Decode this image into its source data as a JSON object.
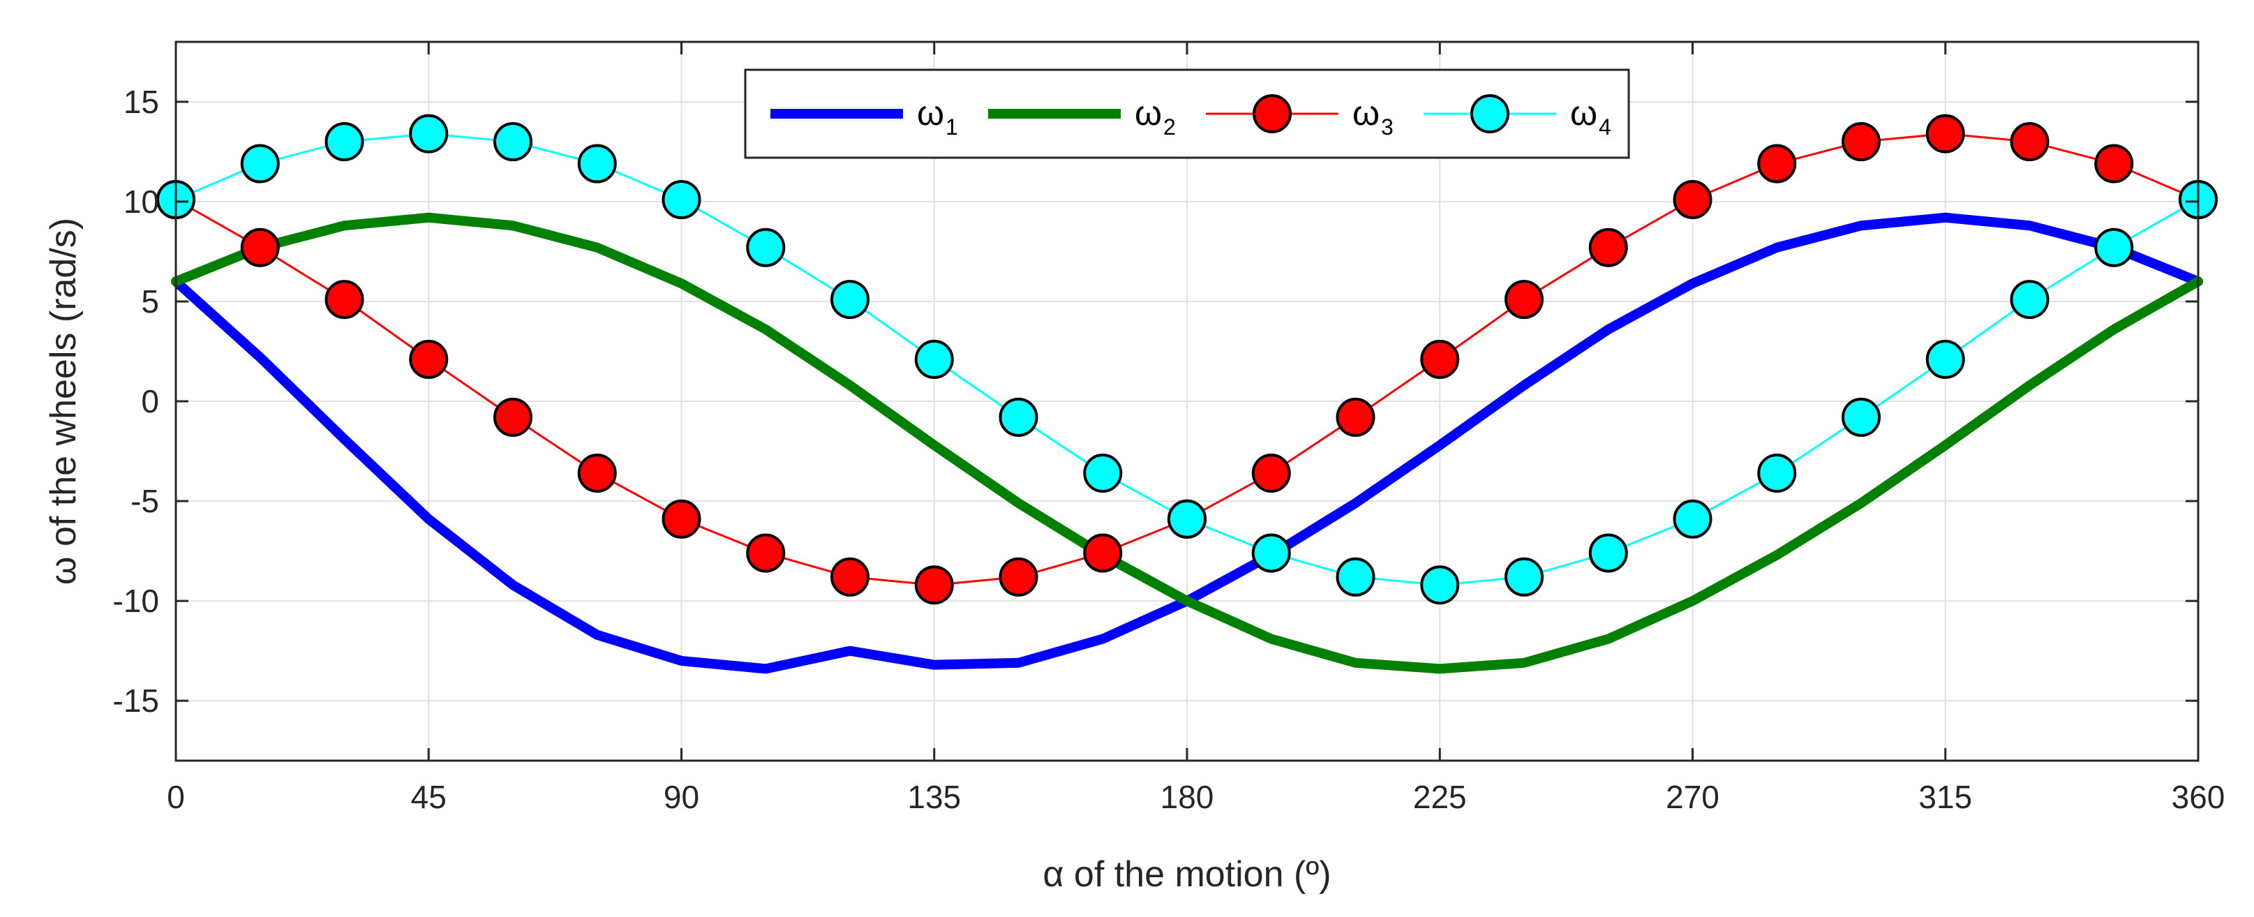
{
  "chart_data": {
    "type": "line",
    "title": "",
    "xlabel": "α of the motion (º)",
    "ylabel": "ω of the wheels (rad/s)",
    "xlim": [
      0,
      360
    ],
    "ylim": [
      -18,
      18
    ],
    "xticks": [
      0,
      45,
      90,
      135,
      180,
      225,
      270,
      315,
      360
    ],
    "xtick_labels": [
      "0",
      "45",
      "90",
      "135",
      "180",
      "225",
      "270",
      "315",
      "360"
    ],
    "yticks": [
      15,
      10,
      5,
      0,
      -5,
      -10,
      -15
    ],
    "ytick_labels": [
      "15",
      "10",
      "5",
      "0",
      "-5",
      "-10",
      "-15"
    ],
    "grid": true,
    "legend_position": "top-center",
    "legend_orientation": "horizontal",
    "series": [
      {
        "name": "ω",
        "subscript": "1",
        "color": "#0000FF",
        "style": "line",
        "marker": "none",
        "x": [
          0,
          15,
          30,
          45,
          60,
          75,
          90,
          105,
          120,
          135,
          150,
          165,
          180,
          195,
          210,
          225,
          240,
          255,
          270,
          285,
          300,
          315,
          330,
          345,
          360
        ],
        "values": [
          6.0,
          2.2,
          -1.9,
          -5.9,
          -9.2,
          -11.7,
          -13.0,
          -13.4,
          -12.5,
          -13.2,
          -13.1,
          -11.9,
          -10.0,
          -7.7,
          -5.1,
          -2.2,
          0.8,
          3.6,
          5.9,
          7.7,
          8.8,
          9.2,
          8.8,
          7.7,
          6.0
        ]
      },
      {
        "name": "ω",
        "subscript": "2",
        "color": "#008000",
        "style": "line",
        "marker": "none",
        "x": [
          0,
          15,
          30,
          45,
          60,
          75,
          90,
          105,
          120,
          135,
          150,
          165,
          180,
          195,
          210,
          225,
          240,
          255,
          270,
          285,
          300,
          315,
          330,
          345,
          360
        ],
        "values": [
          6.0,
          7.7,
          8.8,
          9.2,
          8.8,
          7.7,
          5.9,
          3.6,
          0.8,
          -2.2,
          -5.1,
          -7.7,
          -10.0,
          -11.9,
          -13.1,
          -13.4,
          -13.1,
          -11.9,
          -10.0,
          -7.7,
          -5.1,
          -2.2,
          0.8,
          3.6,
          6.0
        ]
      },
      {
        "name": "ω",
        "subscript": "3",
        "color": "#FF0000",
        "style": "line",
        "marker": "circle",
        "x": [
          0,
          15,
          30,
          45,
          60,
          75,
          90,
          105,
          120,
          135,
          150,
          165,
          180,
          195,
          210,
          225,
          240,
          255,
          270,
          285,
          300,
          315,
          330,
          345,
          360
        ],
        "values": [
          10.1,
          7.7,
          5.1,
          2.1,
          -0.8,
          -3.6,
          -5.9,
          -7.6,
          -8.8,
          -9.2,
          -8.8,
          -7.6,
          -5.9,
          -3.6,
          -0.8,
          2.1,
          5.1,
          7.7,
          10.1,
          11.9,
          13.0,
          13.4,
          13.0,
          11.9,
          10.1
        ]
      },
      {
        "name": "ω",
        "subscript": "4",
        "color": "#00FFFF",
        "style": "line",
        "marker": "circle",
        "x": [
          0,
          15,
          30,
          45,
          60,
          75,
          90,
          105,
          120,
          135,
          150,
          165,
          180,
          195,
          210,
          225,
          240,
          255,
          270,
          285,
          300,
          315,
          330,
          345,
          360
        ],
        "values": [
          10.1,
          11.9,
          13.0,
          13.4,
          13.0,
          11.9,
          10.1,
          7.7,
          5.1,
          2.1,
          -0.8,
          -3.6,
          -5.9,
          -7.6,
          -8.8,
          -9.2,
          -8.8,
          -7.6,
          -5.9,
          -3.6,
          -0.8,
          2.1,
          5.1,
          7.7,
          10.1
        ]
      }
    ]
  }
}
